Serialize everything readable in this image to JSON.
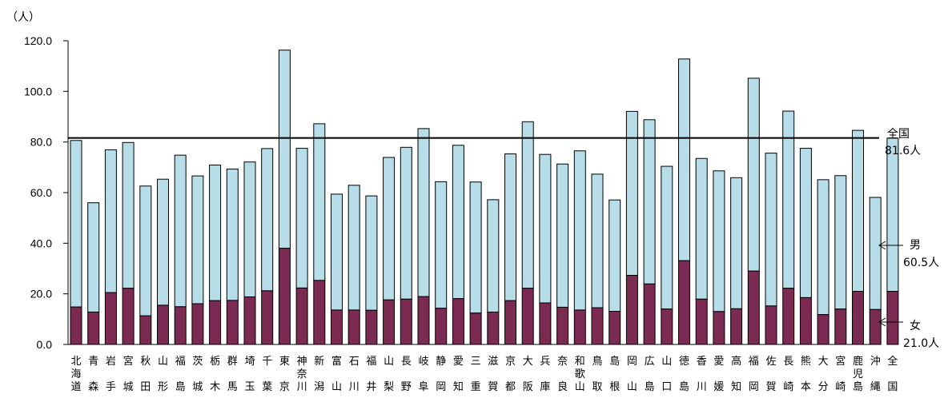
{
  "chart_data": {
    "type": "bar",
    "stacked": true,
    "unit_label": "（人）",
    "ylim": [
      0,
      120
    ],
    "yticks": [
      "0.0",
      "20.0",
      "40.0",
      "60.0",
      "80.0",
      "100.0",
      "120.0"
    ],
    "categories": [
      "北海道",
      "青森",
      "岩手",
      "宮城",
      "秋田",
      "山形",
      "福島",
      "茨城",
      "栃木",
      "群馬",
      "埼玉",
      "千葉",
      "東京",
      "神奈川",
      "新潟",
      "富山",
      "石川",
      "福井",
      "山梨",
      "長野",
      "岐阜",
      "静岡",
      "愛知",
      "三重",
      "滋賀",
      "京都",
      "大阪",
      "兵庫",
      "奈良",
      "和歌山",
      "鳥取",
      "島根",
      "岡山",
      "広島",
      "山口",
      "徳島",
      "香川",
      "愛媛",
      "高知",
      "福岡",
      "佐賀",
      "長崎",
      "熊本",
      "大分",
      "宮崎",
      "鹿児島",
      "沖縄",
      "全国"
    ],
    "series": [
      {
        "name": "女",
        "color": "#7b2a52",
        "values": [
          14.8,
          12.8,
          20.5,
          22.2,
          11.3,
          15.5,
          14.9,
          16.1,
          17.3,
          17.4,
          18.8,
          21.2,
          38.0,
          22.3,
          25.3,
          13.6,
          13.6,
          13.5,
          17.6,
          17.9,
          18.9,
          14.3,
          18.1,
          12.4,
          12.8,
          17.3,
          22.2,
          16.4,
          14.7,
          13.6,
          14.5,
          13.1,
          27.3,
          23.9,
          14.0,
          33.1,
          17.9,
          13.0,
          14.1,
          29.0,
          15.2,
          22.2,
          18.5,
          11.8,
          14.0,
          21.0,
          13.8,
          21.0
        ]
      },
      {
        "name": "男",
        "color": "#b7dde8",
        "values": [
          65.8,
          43.2,
          56.4,
          57.6,
          51.3,
          49.8,
          59.9,
          50.5,
          53.6,
          51.9,
          53.3,
          56.2,
          78.3,
          55.2,
          61.9,
          45.8,
          49.3,
          45.2,
          56.3,
          60.0,
          66.4,
          50.0,
          60.6,
          51.8,
          44.4,
          58.0,
          65.8,
          58.7,
          56.6,
          62.9,
          52.8,
          44.0,
          64.8,
          64.9,
          56.4,
          79.7,
          55.6,
          55.6,
          51.8,
          76.2,
          60.4,
          70.0,
          59.0,
          53.3,
          52.7,
          63.6,
          44.3,
          60.5
        ]
      }
    ],
    "reference_line": {
      "value": 81.6,
      "label_line1": "全国",
      "label_line2": "81.6人"
    },
    "annotations": {
      "male": {
        "label": "男",
        "value": "60.5人"
      },
      "female": {
        "label": "女",
        "value": "21.0人"
      }
    }
  }
}
